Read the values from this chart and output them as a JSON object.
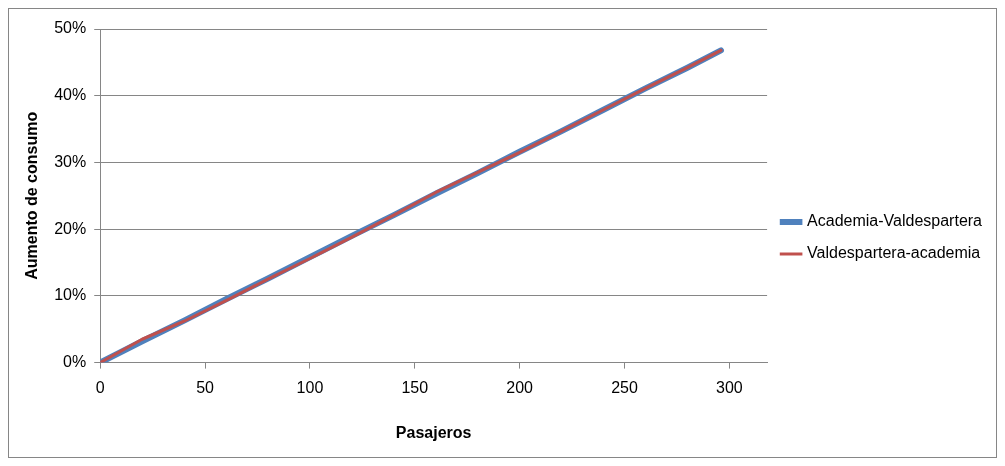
{
  "chart_data": {
    "type": "line",
    "xlabel": "Pasajeros",
    "ylabel": "Aumento de consumo",
    "xlim": [
      0,
      318
    ],
    "xticks": [
      0,
      50,
      100,
      150,
      200,
      250,
      300
    ],
    "ylim": [
      0,
      50
    ],
    "yticks": [
      {
        "value": 0,
        "label": "0%"
      },
      {
        "value": 10,
        "label": "10%"
      },
      {
        "value": 20,
        "label": "20%"
      },
      {
        "value": 30,
        "label": "30%"
      },
      {
        "value": 40,
        "label": "40%"
      },
      {
        "value": 50,
        "label": "50%"
      }
    ],
    "grid": "y",
    "legend": "right",
    "marker": "none",
    "line_style": "solid",
    "x": [
      0,
      20,
      40,
      60,
      80,
      100,
      120,
      140,
      160,
      180,
      200,
      220,
      240,
      260,
      280,
      296
    ],
    "series": [
      {
        "name": "Academia-Valdespartera",
        "color": "#4f81bd",
        "values": [
          0,
          3.2,
          6.3,
          9.5,
          12.6,
          15.8,
          19,
          22.1,
          25.3,
          28.4,
          31.6,
          34.7,
          37.9,
          41.1,
          44.2,
          46.8
        ]
      },
      {
        "name": "Valdespartera-academia",
        "color": "#c0504d",
        "values": [
          0,
          3.5,
          6.2,
          9.3,
          12.5,
          15.6,
          18.8,
          22.1,
          25.5,
          28.5,
          31.5,
          34.7,
          37.9,
          41.1,
          44.2,
          46.8
        ]
      }
    ]
  }
}
